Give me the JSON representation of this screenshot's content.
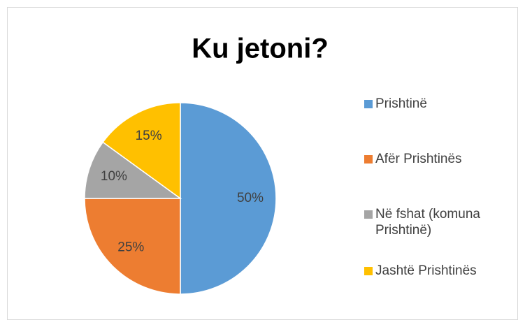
{
  "chart_data": {
    "type": "pie",
    "title": "Ku jetoni?",
    "categories": [
      "Prishtinë",
      "Afër Prishtinës",
      "Në fshat (komuna Prishtinë)",
      "Jashtë Prishtinës"
    ],
    "values": [
      50,
      25,
      10,
      15
    ],
    "value_labels": [
      "50%",
      "25%",
      "10%",
      "15%"
    ],
    "colors": [
      "#5b9bd5",
      "#ed7d31",
      "#a5a5a5",
      "#ffc000"
    ],
    "legend": "right"
  }
}
